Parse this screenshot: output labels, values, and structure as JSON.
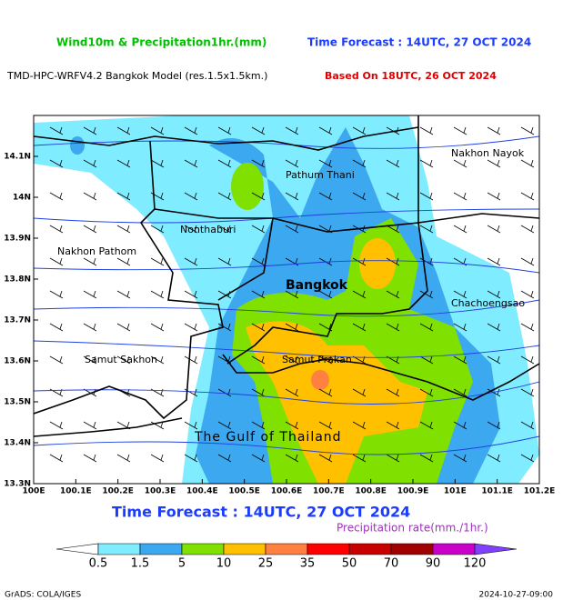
{
  "header": {
    "title_left": "Wind10m & Precipitation1hr.(mm)",
    "title_right": "Time Forecast : 14UTC, 27 OCT 2024",
    "model": "TMD-HPC-WRFV4.2 Bangkok Model (res.1.5x1.5km.)",
    "based_on": "Based On 18UTC, 26 OCT 2024"
  },
  "map": {
    "lat_labels": [
      "14.1N",
      "14N",
      "13.9N",
      "13.8N",
      "13.7N",
      "13.6N",
      "13.5N",
      "13.4N",
      "13.3N"
    ],
    "lon_labels": [
      "100E",
      "100.1E",
      "100.2E",
      "100.3E",
      "100.4E",
      "100.5E",
      "100.6E",
      "100.7E",
      "100.8E",
      "100.9E",
      "101E",
      "101.1E",
      "101.2E"
    ],
    "places": [
      "Pathum Thani",
      "Nonthaburi",
      "Nakhon Pathom",
      "Bangkok",
      "Samut Sakhon",
      "Samut Prakan",
      "Nakhon Nayok",
      "Chachoengsao",
      "The Gulf of Thailand"
    ]
  },
  "footer": {
    "time_forecast": "Time Forecast : 14UTC, 27 OCT 2024",
    "colorbar_title": "Precipitation rate(mm./1hr.)",
    "colorbar": {
      "labels": [
        0.5,
        1.5,
        5,
        10,
        25,
        35,
        50,
        70,
        90,
        120
      ],
      "colors": [
        "#ffffff",
        "#80ecff",
        "#3ca8f0",
        "#80e000",
        "#ffc000",
        "#ff8040",
        "#ff0000",
        "#c80000",
        "#a00000",
        "#c800c8",
        "#8040ff"
      ]
    },
    "credit": "GrADS: COLA/IGES",
    "timestamp": "2024-10-27-09:00"
  }
}
